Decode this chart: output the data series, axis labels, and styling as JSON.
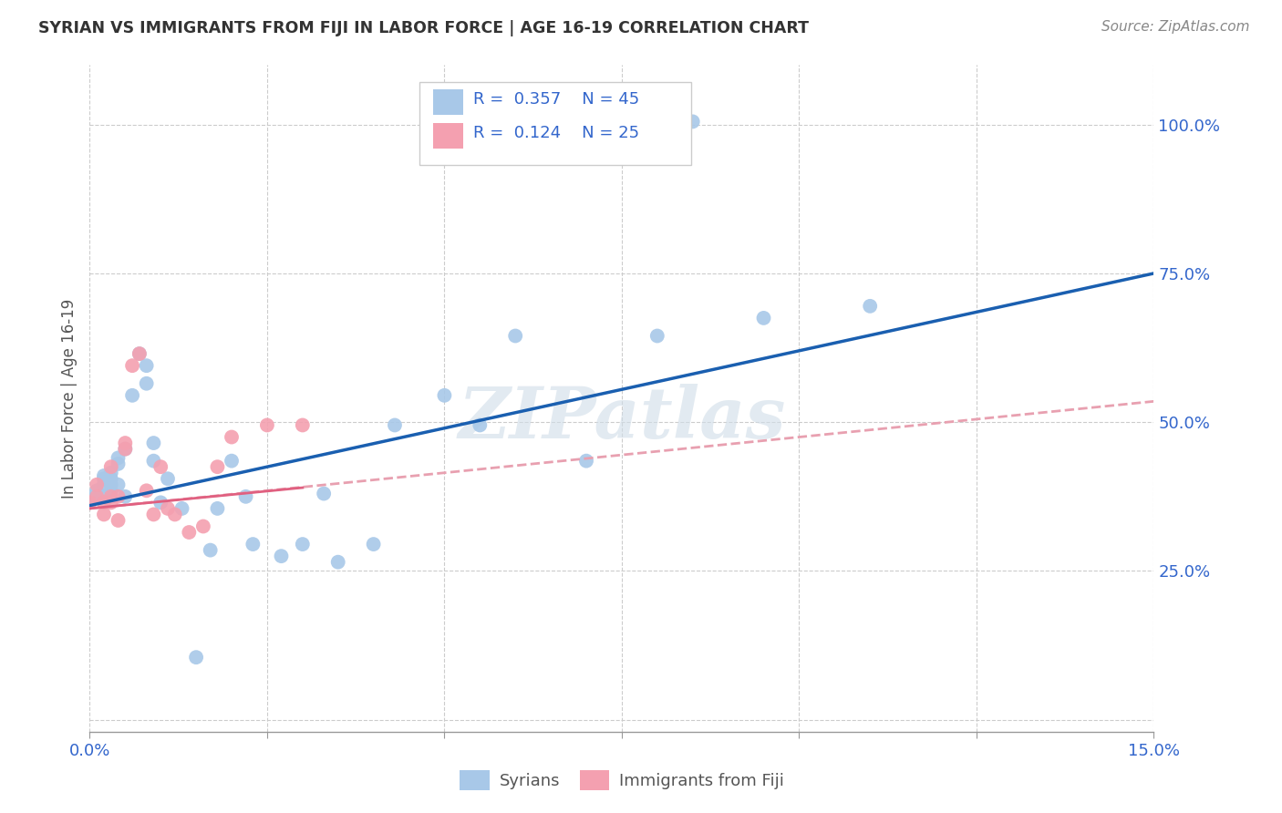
{
  "title": "SYRIAN VS IMMIGRANTS FROM FIJI IN LABOR FORCE | AGE 16-19 CORRELATION CHART",
  "source": "Source: ZipAtlas.com",
  "ylabel": "In Labor Force | Age 16-19",
  "xlim": [
    0.0,
    0.15
  ],
  "ylim": [
    -0.02,
    1.1
  ],
  "xticks": [
    0.0,
    0.025,
    0.05,
    0.075,
    0.1,
    0.125,
    0.15
  ],
  "xtick_labels": [
    "0.0%",
    "",
    "",
    "",
    "",
    "",
    "15.0%"
  ],
  "ytick_positions": [
    0.0,
    0.25,
    0.5,
    0.75,
    1.0
  ],
  "ytick_labels": [
    "",
    "25.0%",
    "50.0%",
    "75.0%",
    "100.0%"
  ],
  "blue_color": "#a8c8e8",
  "pink_color": "#f4a0b0",
  "trend_blue": "#1a5fb0",
  "trend_pink_solid": "#e06080",
  "trend_pink_dash": "#e8a0b0",
  "legend_R_color": "#3366cc",
  "legend_N_color": "#3366cc",
  "watermark": "ZIPatlas",
  "syrians_x": [
    0.0,
    0.001,
    0.001,
    0.002,
    0.002,
    0.002,
    0.002,
    0.003,
    0.003,
    0.003,
    0.003,
    0.004,
    0.004,
    0.004,
    0.005,
    0.005,
    0.006,
    0.007,
    0.008,
    0.008,
    0.009,
    0.009,
    0.01,
    0.011,
    0.013,
    0.015,
    0.017,
    0.018,
    0.02,
    0.022,
    0.023,
    0.027,
    0.03,
    0.035,
    0.04,
    0.043,
    0.05,
    0.055,
    0.06,
    0.07,
    0.08,
    0.085,
    0.095,
    0.11,
    0.033
  ],
  "syrians_y": [
    0.375,
    0.375,
    0.385,
    0.375,
    0.395,
    0.41,
    0.405,
    0.385,
    0.395,
    0.405,
    0.415,
    0.395,
    0.43,
    0.44,
    0.375,
    0.455,
    0.545,
    0.615,
    0.595,
    0.565,
    0.435,
    0.465,
    0.365,
    0.405,
    0.355,
    0.105,
    0.285,
    0.355,
    0.435,
    0.375,
    0.295,
    0.275,
    0.295,
    0.265,
    0.295,
    0.495,
    0.545,
    0.495,
    0.645,
    0.435,
    0.645,
    1.005,
    0.675,
    0.695,
    0.38
  ],
  "fiji_x": [
    0.0,
    0.001,
    0.001,
    0.002,
    0.002,
    0.003,
    0.003,
    0.003,
    0.004,
    0.004,
    0.005,
    0.005,
    0.006,
    0.007,
    0.008,
    0.009,
    0.01,
    0.011,
    0.012,
    0.014,
    0.016,
    0.018,
    0.02,
    0.025,
    0.03
  ],
  "fiji_y": [
    0.365,
    0.375,
    0.395,
    0.345,
    0.365,
    0.375,
    0.425,
    0.365,
    0.375,
    0.335,
    0.455,
    0.465,
    0.595,
    0.615,
    0.385,
    0.345,
    0.425,
    0.355,
    0.345,
    0.315,
    0.325,
    0.425,
    0.475,
    0.495,
    0.495
  ],
  "blue_trend_x0": 0.0,
  "blue_trend_y0": 0.36,
  "blue_trend_x1": 0.15,
  "blue_trend_y1": 0.75,
  "pink_trend_x0": 0.0,
  "pink_trend_y0": 0.355,
  "pink_trend_x1": 0.15,
  "pink_trend_y1": 0.535
}
